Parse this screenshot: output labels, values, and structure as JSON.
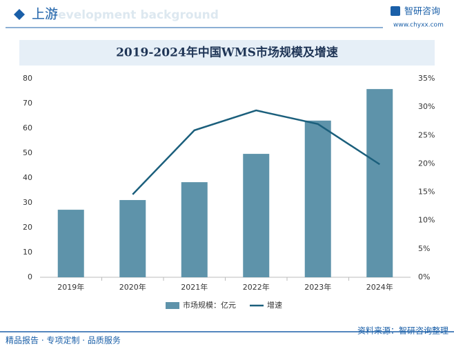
{
  "header": {
    "title": "上游",
    "subtitle": "Development background",
    "brand": "智研咨询",
    "website": "www.chyxx.com"
  },
  "chart_data": {
    "type": "bar_line",
    "title": "2019-2024年中国WMS市场规模及增速",
    "categories": [
      "2019年",
      "2020年",
      "2021年",
      "2022年",
      "2023年",
      "2024年"
    ],
    "series": [
      {
        "name": "市场规模：亿元",
        "color": "#5e93aa",
        "type": "bar",
        "values": [
          27.2,
          31.1,
          38.3,
          49.7,
          63.1,
          75.8
        ]
      },
      {
        "name": "增速",
        "color": "#1b5f7c",
        "type": "line",
        "axis": "y2",
        "values": [
          null,
          14.6,
          25.9,
          29.4,
          27.0,
          19.9
        ]
      }
    ],
    "ylim": [
      0,
      80
    ],
    "yticks": [
      0,
      10,
      20,
      30,
      40,
      50,
      60,
      70,
      80
    ],
    "y2lim": [
      0,
      35
    ],
    "y2ticks": [
      {
        "value": 0,
        "label": "0%"
      },
      {
        "value": 5,
        "label": "5%"
      },
      {
        "value": 10,
        "label": "10%"
      },
      {
        "value": 15,
        "label": "15%"
      },
      {
        "value": 20,
        "label": "20%"
      },
      {
        "value": 25,
        "label": "25%"
      },
      {
        "value": 30,
        "label": "30%"
      },
      {
        "value": 35,
        "label": "35%"
      }
    ],
    "legend": "bottom"
  },
  "footer": {
    "slogan": "精品报告 · 专项定制 · 品质服务",
    "source": "资料来源：智研咨询整理"
  }
}
